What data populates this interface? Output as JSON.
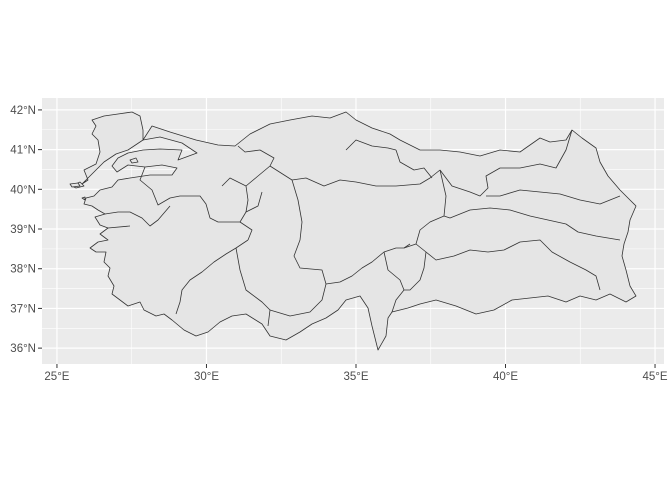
{
  "map": {
    "panel_color": "#ebebeb",
    "grid_color": "#ffffff",
    "land_fill": "#e5e5e5",
    "border_color": "#333333",
    "lon_range": [
      24.5,
      45.3
    ],
    "lat_range": [
      35.6,
      42.3
    ],
    "lon_ticks": [
      {
        "value": 25,
        "label": "25°E"
      },
      {
        "value": 30,
        "label": "30°E"
      },
      {
        "value": 35,
        "label": "35°E"
      },
      {
        "value": 40,
        "label": "40°E"
      },
      {
        "value": 45,
        "label": "45°E"
      }
    ],
    "lat_ticks": [
      {
        "value": 42,
        "label": "42°N"
      },
      {
        "value": 41,
        "label": "41°N"
      },
      {
        "value": 40,
        "label": "40°N"
      },
      {
        "value": 39,
        "label": "39°N"
      },
      {
        "value": 38,
        "label": "38°N"
      },
      {
        "value": 37,
        "label": "37°N"
      },
      {
        "value": 36,
        "label": "36°N"
      }
    ],
    "regions": [
      {
        "id": "thrace"
      },
      {
        "id": "marmara-south"
      },
      {
        "id": "aegean"
      },
      {
        "id": "west-anatolia"
      },
      {
        "id": "mediterranean-west"
      },
      {
        "id": "central-west"
      },
      {
        "id": "west-black-sea"
      },
      {
        "id": "central-black-sea"
      },
      {
        "id": "east-black-sea"
      },
      {
        "id": "central-anatolia"
      },
      {
        "id": "mediterranean-east"
      },
      {
        "id": "northeast-anatolia"
      },
      {
        "id": "central-east"
      },
      {
        "id": "southeast-anatolia"
      }
    ]
  }
}
